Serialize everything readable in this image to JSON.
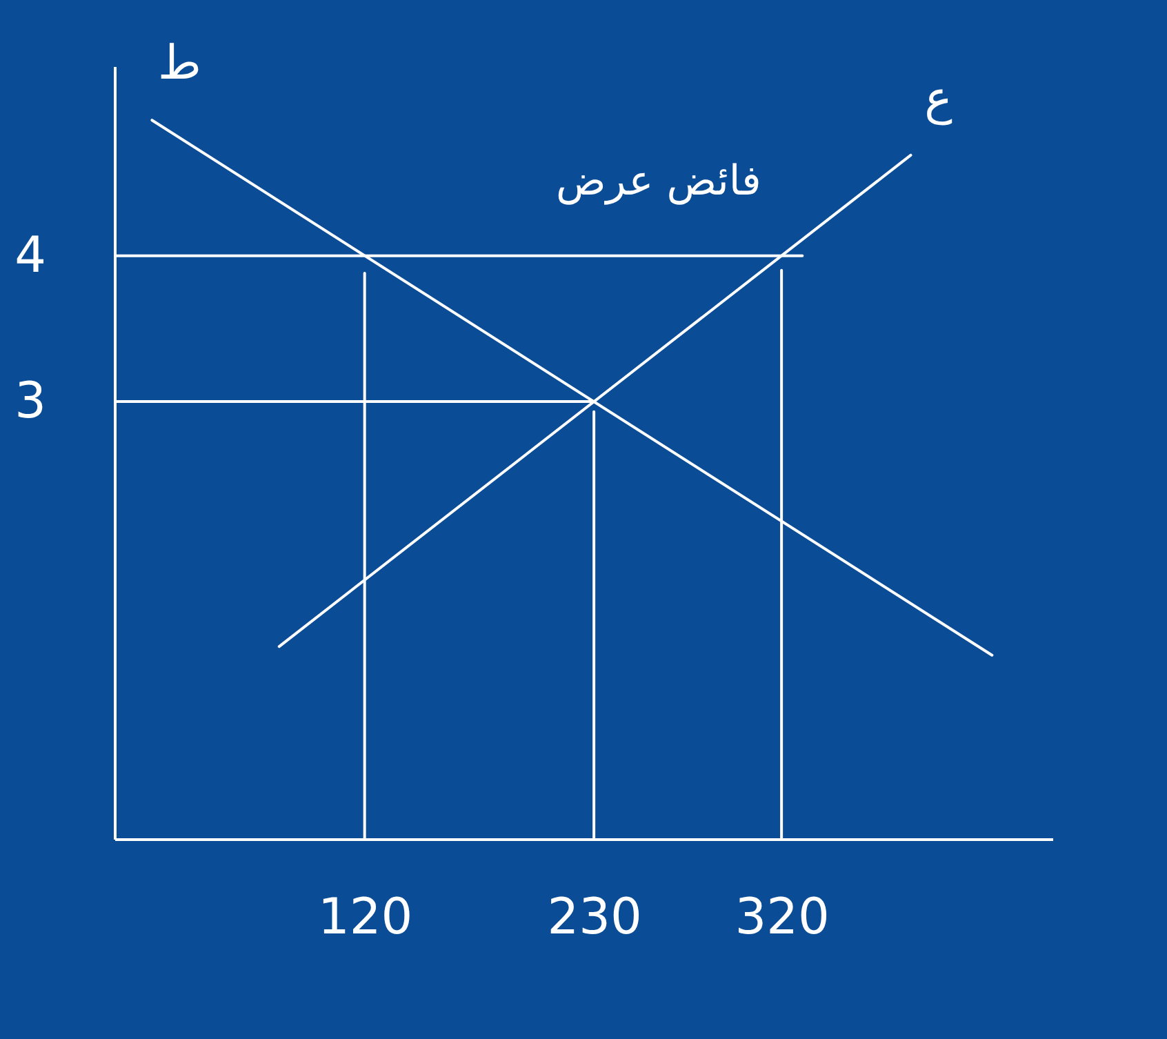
{
  "chart_data": {
    "type": "line",
    "xlim": [
      0,
      450
    ],
    "ylim": [
      0,
      5.3
    ],
    "xticks": [
      120,
      230,
      320
    ],
    "yticks": [
      3,
      4
    ],
    "grid": false,
    "series": [
      {
        "name": "ط",
        "color": "#ffffff",
        "x": [
          18,
          421
        ],
        "values": [
          4.93,
          1.26
        ]
      },
      {
        "name": "ع",
        "color": "#ffffff",
        "x": [
          79,
          382
        ],
        "values": [
          1.32,
          4.69
        ]
      },
      {
        "color": "#ffffff",
        "x": [
          0,
          330
        ],
        "values": [
          4,
          4
        ]
      },
      {
        "color": "#ffffff",
        "x": [
          0,
          230
        ],
        "values": [
          3,
          3
        ]
      },
      {
        "color": "#ffffff",
        "x": [
          120,
          120
        ],
        "values": [
          0,
          3.88
        ]
      },
      {
        "color": "#ffffff",
        "x": [
          230,
          230
        ],
        "values": [
          0,
          2.93
        ]
      },
      {
        "color": "#ffffff",
        "x": [
          320,
          320
        ],
        "values": [
          0,
          3.9
        ]
      }
    ],
    "annotations": [
      "فائض عرض"
    ]
  }
}
